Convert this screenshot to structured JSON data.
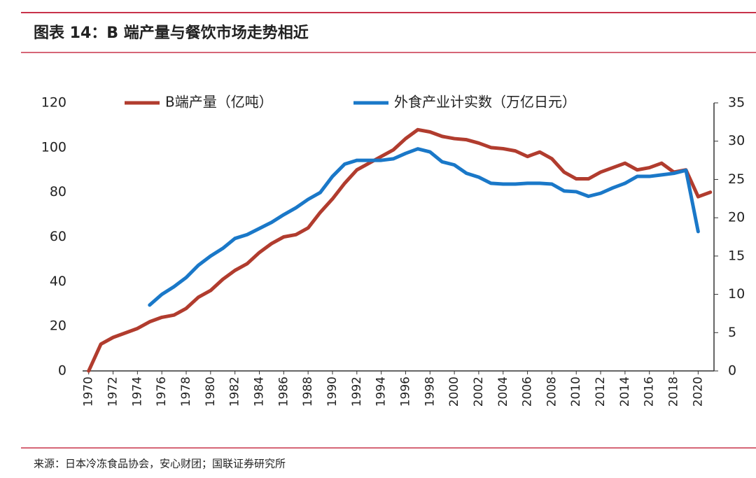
{
  "header": {
    "title": "图表 14：B 端产量与餐饮市场走势相近"
  },
  "footer": {
    "source": "来源：日本冷冻食品协会，安心财团；国联证券研究所"
  },
  "chart_data": {
    "type": "line",
    "x": [
      1970,
      1971,
      1972,
      1973,
      1974,
      1975,
      1976,
      1977,
      1978,
      1979,
      1980,
      1981,
      1982,
      1983,
      1984,
      1985,
      1986,
      1987,
      1988,
      1989,
      1990,
      1991,
      1992,
      1993,
      1994,
      1995,
      1996,
      1997,
      1998,
      1999,
      2000,
      2001,
      2002,
      2003,
      2004,
      2005,
      2006,
      2007,
      2008,
      2009,
      2010,
      2011,
      2012,
      2013,
      2014,
      2015,
      2016,
      2017,
      2018,
      2019,
      2020,
      2021
    ],
    "series": [
      {
        "name": "B端产量（亿吨）",
        "color": "#b13c2e",
        "values": [
          0,
          12,
          15,
          17,
          19,
          22,
          24,
          25,
          28,
          33,
          36,
          41,
          45,
          48,
          53,
          57,
          60,
          61,
          64,
          71,
          77,
          84,
          90,
          93,
          96,
          99,
          104,
          108,
          107,
          105,
          104,
          103.5,
          102,
          100,
          99.5,
          98.5,
          96,
          98,
          95,
          89,
          86,
          86,
          89,
          91,
          93,
          90,
          91,
          93,
          89,
          90,
          78,
          80
        ]
      },
      {
        "name": "外食产业计实数（万亿日元）",
        "color": "#1a78c8",
        "axis": "y2",
        "values": [
          null,
          null,
          null,
          null,
          null,
          8.6,
          10.0,
          11,
          12.2,
          13.8,
          15,
          16,
          17.3,
          17.8,
          18.6,
          19.4,
          20.4,
          21.3,
          22.4,
          23.3,
          25.4,
          27.0,
          27.5,
          27.5,
          27.5,
          27.7,
          28.4,
          29.0,
          28.6,
          27.3,
          26.9,
          25.8,
          25.3,
          24.5,
          24.4,
          24.4,
          24.5,
          24.5,
          24.4,
          23.5,
          23.4,
          22.8,
          23.2,
          23.9,
          24.5,
          25.4,
          25.4,
          25.6,
          25.8,
          26.2,
          18.2,
          null
        ]
      }
    ],
    "xlim": [
      1969.5,
      2021.3
    ],
    "xticks": [
      1970,
      1972,
      1974,
      1976,
      1978,
      1980,
      1982,
      1984,
      1986,
      1988,
      1990,
      1992,
      1994,
      1996,
      1998,
      2000,
      2002,
      2004,
      2006,
      2008,
      2010,
      2012,
      2014,
      2016,
      2018,
      2020
    ],
    "ylim": [
      0,
      120
    ],
    "yticks": [
      0,
      20,
      40,
      60,
      80,
      100,
      120
    ],
    "y2lim": [
      0,
      35
    ],
    "y2ticks": [
      0,
      5,
      10,
      15,
      20,
      25,
      30,
      35
    ]
  }
}
